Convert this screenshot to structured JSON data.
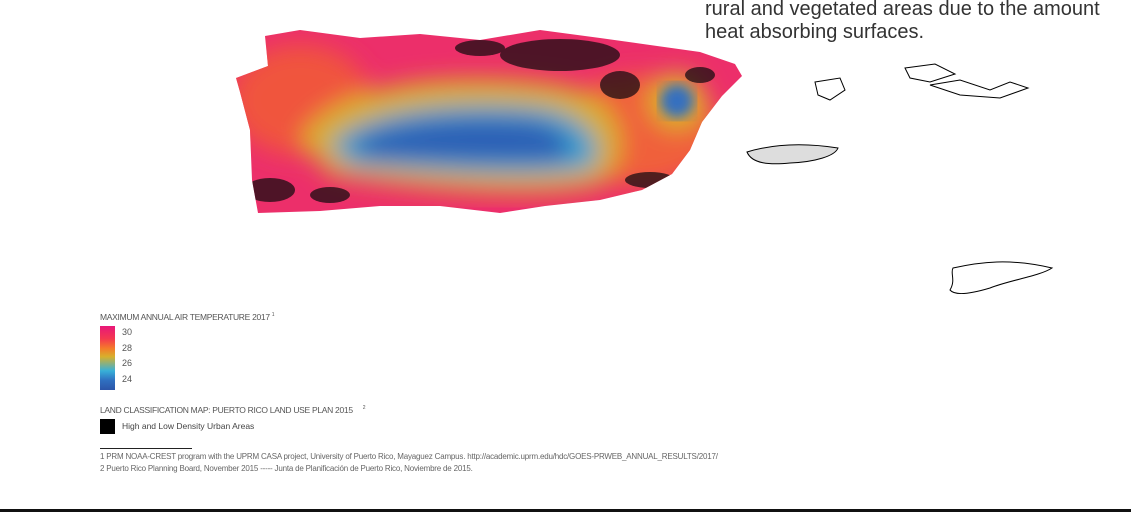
{
  "body_text": {
    "line1": "rural and vegetated areas due to the amount",
    "line2": "heat absorbing surfaces."
  },
  "legend": {
    "temperature_title": "MAXIMUM ANNUAL AIR TEMPERATURE 2017",
    "temperature_note": "1",
    "ticks": [
      "30",
      "28",
      "26",
      "24"
    ],
    "colors": {
      "high": "#e8177a",
      "mid": "#d7b02c",
      "low": "#2c55a8"
    },
    "landuse_title": "LAND CLASSIFICATION MAP: PUERTO RICO LAND USE PLAN 2015",
    "landuse_note": "2",
    "urban_label": "High and Low Density Urban Areas",
    "urban_color": "#000000"
  },
  "footnotes": [
    "1  PRM NOAA-CREST program with the UPRM CASA project, University of Puerto Rico, Mayaguez Campus. http://academic.uprm.edu/hdc/GOES-PRWEB_ANNUAL_RESULTS/2017/",
    "2  Puerto Rico Planning Board, November 2015 ----- Junta de Planificación de Puerto Rico, Noviembre de 2015."
  ]
}
